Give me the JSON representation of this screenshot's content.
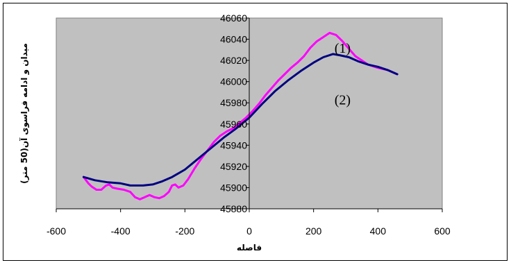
{
  "chart_data": {
    "type": "line",
    "xlabel": "فاصله",
    "ylabel": "میدان و ادامه فراسوی آن(50 متر)",
    "xlim": [
      -600,
      600
    ],
    "ylim": [
      45880,
      46060
    ],
    "xticks": [
      "-600",
      "-400",
      "-200",
      "0",
      "200",
      "400",
      "600"
    ],
    "yticks": [
      "45880",
      "45900",
      "45920",
      "45940",
      "45960",
      "45980",
      "46000",
      "46020",
      "46040",
      "46060"
    ],
    "grid": false,
    "plot_background": "#c0c0c0",
    "annotations": [
      {
        "text": "(1)",
        "x": 290,
        "y": 46032
      },
      {
        "text": "(2)",
        "x": 290,
        "y": 45983
      }
    ],
    "series": [
      {
        "color": "#ff00ff",
        "points": [
          [
            -515,
            45910
          ],
          [
            -500,
            45904
          ],
          [
            -490,
            45901
          ],
          [
            -475,
            45898
          ],
          [
            -460,
            45898
          ],
          [
            -445,
            45902
          ],
          [
            -435,
            45903
          ],
          [
            -425,
            45900
          ],
          [
            -410,
            45899
          ],
          [
            -390,
            45898
          ],
          [
            -370,
            45896
          ],
          [
            -355,
            45891
          ],
          [
            -340,
            45889
          ],
          [
            -325,
            45891
          ],
          [
            -310,
            45893
          ],
          [
            -295,
            45891
          ],
          [
            -280,
            45890
          ],
          [
            -265,
            45892
          ],
          [
            -250,
            45896
          ],
          [
            -240,
            45902
          ],
          [
            -230,
            45903
          ],
          [
            -220,
            45900
          ],
          [
            -205,
            45902
          ],
          [
            -190,
            45908
          ],
          [
            -170,
            45918
          ],
          [
            -150,
            45927
          ],
          [
            -130,
            45935
          ],
          [
            -110,
            45943
          ],
          [
            -90,
            45949
          ],
          [
            -70,
            45953
          ],
          [
            -50,
            45956
          ],
          [
            -30,
            45961
          ],
          [
            -10,
            45966
          ],
          [
            10,
            45972
          ],
          [
            30,
            45979
          ],
          [
            50,
            45987
          ],
          [
            70,
            45994
          ],
          [
            90,
            46001
          ],
          [
            110,
            46007
          ],
          [
            130,
            46013
          ],
          [
            150,
            46018
          ],
          [
            170,
            46024
          ],
          [
            190,
            46032
          ],
          [
            210,
            46038
          ],
          [
            230,
            46042
          ],
          [
            250,
            46046
          ],
          [
            270,
            46044
          ],
          [
            290,
            46038
          ],
          [
            310,
            46031
          ],
          [
            330,
            46024
          ],
          [
            350,
            46020
          ],
          [
            370,
            46016
          ],
          [
            400,
            46013
          ],
          [
            430,
            46011
          ],
          [
            460,
            46007
          ]
        ]
      },
      {
        "color": "#000080",
        "points": [
          [
            -515,
            45910
          ],
          [
            -480,
            45907
          ],
          [
            -440,
            45905
          ],
          [
            -400,
            45904
          ],
          [
            -370,
            45902
          ],
          [
            -330,
            45902
          ],
          [
            -300,
            45903
          ],
          [
            -270,
            45906
          ],
          [
            -240,
            45910
          ],
          [
            -200,
            45917
          ],
          [
            -160,
            45927
          ],
          [
            -120,
            45937
          ],
          [
            -80,
            45947
          ],
          [
            -40,
            45956
          ],
          [
            0,
            45966
          ],
          [
            40,
            45979
          ],
          [
            80,
            45991
          ],
          [
            120,
            46001
          ],
          [
            160,
            46010
          ],
          [
            200,
            46018
          ],
          [
            230,
            46023
          ],
          [
            260,
            46026
          ],
          [
            280,
            46025
          ],
          [
            310,
            46023
          ],
          [
            340,
            46019
          ],
          [
            370,
            46016
          ],
          [
            400,
            46014
          ],
          [
            430,
            46011
          ],
          [
            460,
            46007
          ]
        ]
      }
    ]
  }
}
